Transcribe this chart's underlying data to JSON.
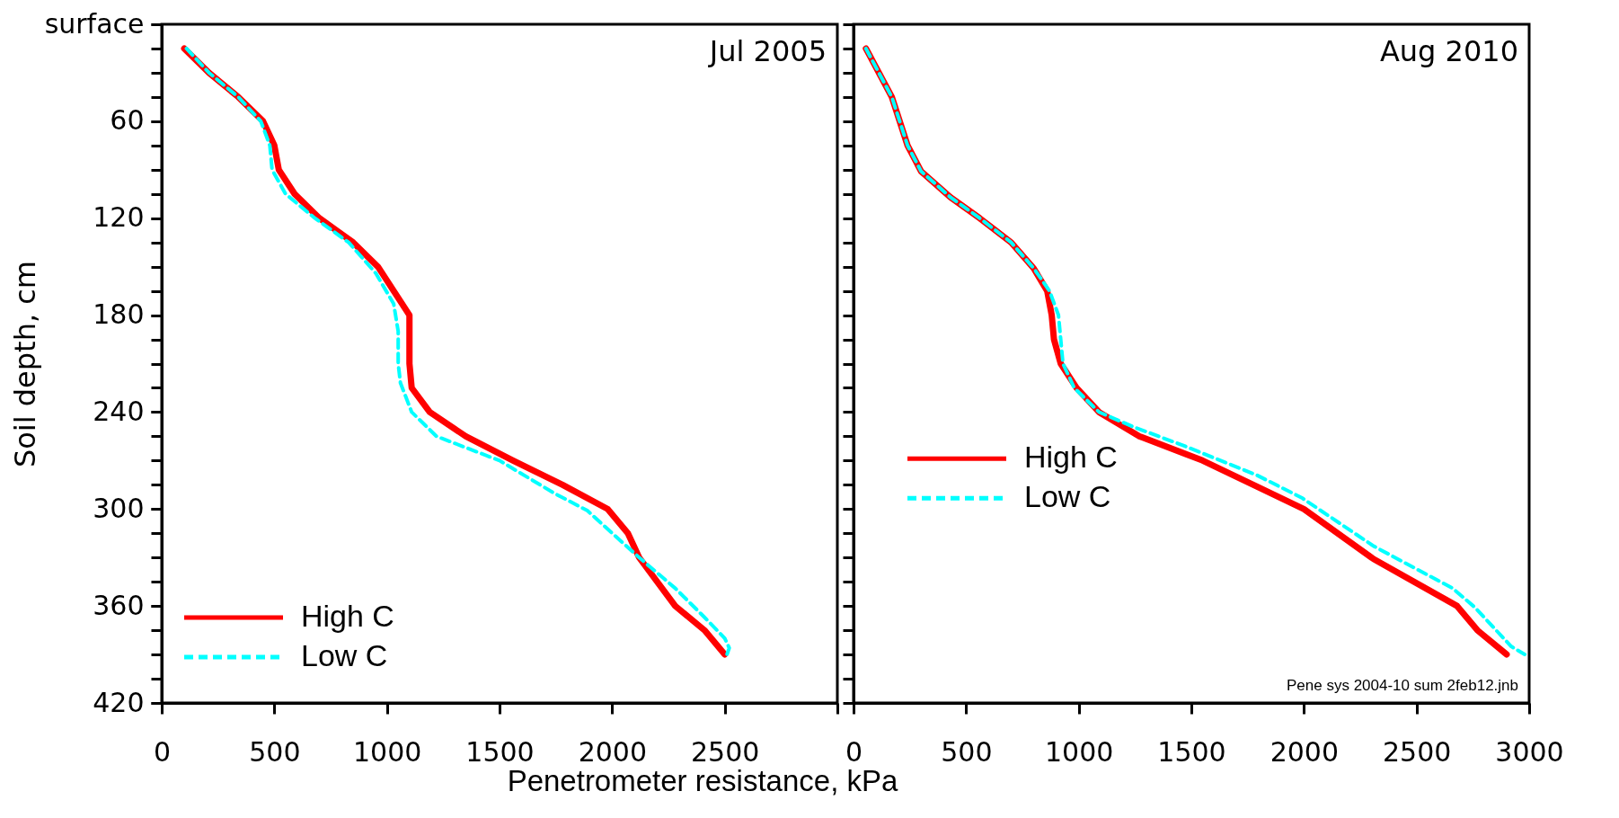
{
  "chart_data": [
    {
      "type": "line",
      "ylabel": "Soil depth, cm",
      "xlabel": "Penetrometer resistance, kPa",
      "annotations": [
        "Jul 2005"
      ],
      "xlim": [
        0,
        3000
      ],
      "xticks": [
        0,
        500,
        1000,
        1500,
        2000,
        2500,
        {
          "value": 3000,
          "label": null
        }
      ],
      "ylim": [
        420,
        0
      ],
      "yticks": [
        {
          "value": 0,
          "label": "surface"
        },
        {
          "value": 15,
          "label": null
        },
        {
          "value": 30,
          "label": null
        },
        {
          "value": 45,
          "label": null
        },
        60,
        {
          "value": 75,
          "label": null
        },
        {
          "value": 90,
          "label": null
        },
        {
          "value": 105,
          "label": null
        },
        120,
        {
          "value": 135,
          "label": null
        },
        {
          "value": 150,
          "label": null
        },
        {
          "value": 165,
          "label": null
        },
        180,
        {
          "value": 195,
          "label": null
        },
        {
          "value": 210,
          "label": null
        },
        {
          "value": 225,
          "label": null
        },
        240,
        {
          "value": 255,
          "label": null
        },
        {
          "value": 270,
          "label": null
        },
        {
          "value": 285,
          "label": null
        },
        300,
        {
          "value": 315,
          "label": null
        },
        {
          "value": 330,
          "label": null
        },
        {
          "value": 345,
          "label": null
        },
        360,
        {
          "value": 375,
          "label": null
        },
        {
          "value": 390,
          "label": null
        },
        {
          "value": 405,
          "label": null
        },
        420
      ],
      "legend": "bottom left",
      "grid": false,
      "series": [
        {
          "name": "High C",
          "color": "#ff0000",
          "line_style": "solid",
          "x": [
            100,
            210,
            340,
            450,
            500,
            520,
            590,
            700,
            850,
            960,
            1100,
            1100,
            1110,
            1190,
            1350,
            1560,
            1780,
            1980,
            2070,
            2120,
            2280,
            2410,
            2500
          ],
          "values": [
            15,
            30,
            45,
            60,
            75,
            90,
            105,
            120,
            135,
            150,
            180,
            210,
            225,
            240,
            255,
            270,
            285,
            300,
            315,
            330,
            360,
            375,
            390
          ]
        },
        {
          "name": "Low C",
          "color": "#00ffff",
          "line_style": "dashed",
          "x": [
            110,
            210,
            340,
            440,
            480,
            490,
            550,
            680,
            830,
            950,
            1030,
            1050,
            1050,
            1060,
            1110,
            1220,
            1500,
            1740,
            1890,
            2040,
            2120,
            2280,
            2410,
            2500,
            2520,
            2510
          ],
          "values": [
            15,
            30,
            45,
            60,
            75,
            90,
            105,
            120,
            135,
            154,
            173,
            190,
            210,
            222,
            240,
            255,
            270,
            290,
            301,
            320,
            330,
            349,
            367,
            380,
            386,
            390
          ]
        }
      ]
    },
    {
      "type": "line",
      "annotations": [
        "Aug 2010",
        "Pene sys 2004-10 sum 2feb12.jnb"
      ],
      "xlim": [
        0,
        3000
      ],
      "xticks": [
        0,
        500,
        1000,
        1500,
        2000,
        2500,
        3000
      ],
      "ylim": [
        420,
        0
      ],
      "yticks": [
        {
          "value": 0,
          "label": null
        },
        {
          "value": 15,
          "label": null
        },
        {
          "value": 30,
          "label": null
        },
        {
          "value": 45,
          "label": null
        },
        {
          "value": 60,
          "label": null
        },
        {
          "value": 75,
          "label": null
        },
        {
          "value": 90,
          "label": null
        },
        {
          "value": 105,
          "label": null
        },
        {
          "value": 120,
          "label": null
        },
        {
          "value": 135,
          "label": null
        },
        {
          "value": 150,
          "label": null
        },
        {
          "value": 165,
          "label": null
        },
        {
          "value": 180,
          "label": null
        },
        {
          "value": 195,
          "label": null
        },
        {
          "value": 210,
          "label": null
        },
        {
          "value": 225,
          "label": null
        },
        {
          "value": 240,
          "label": null
        },
        {
          "value": 255,
          "label": null
        },
        {
          "value": 270,
          "label": null
        },
        {
          "value": 285,
          "label": null
        },
        {
          "value": 300,
          "label": null
        },
        {
          "value": 315,
          "label": null
        },
        {
          "value": 330,
          "label": null
        },
        {
          "value": 345,
          "label": null
        },
        {
          "value": 360,
          "label": null
        },
        {
          "value": 375,
          "label": null
        },
        {
          "value": 390,
          "label": null
        },
        {
          "value": 405,
          "label": null
        },
        {
          "value": 420,
          "label": null
        }
      ],
      "tick_labels": "x",
      "legend": "left",
      "grid": false,
      "series": [
        {
          "name": "High C",
          "color": "#ff0000",
          "line_style": "solid",
          "x": [
            55,
            170,
            240,
            300,
            430,
            560,
            700,
            800,
            860,
            880,
            890,
            920,
            990,
            1090,
            1270,
            1550,
            1790,
            2000,
            2310,
            2680,
            2770,
            2900
          ],
          "values": [
            15,
            45,
            75,
            91,
            107,
            120,
            135,
            151,
            165,
            180,
            195,
            210,
            225,
            240,
            255,
            270,
            286,
            300,
            331,
            360,
            375,
            390
          ]
        },
        {
          "name": "Low C",
          "color": "#00ffff",
          "line_style": "dashed",
          "x": [
            55,
            170,
            240,
            300,
            430,
            560,
            700,
            800,
            870,
            910,
            920,
            930,
            980,
            1090,
            1240,
            1470,
            1790,
            1990,
            2310,
            2660,
            2760,
            2920,
            2980
          ],
          "values": [
            15,
            45,
            75,
            91,
            107,
            120,
            135,
            151,
            165,
            180,
            195,
            210,
            225,
            240,
            249,
            261,
            279,
            293,
            323,
            349,
            361,
            385,
            390
          ]
        }
      ]
    }
  ]
}
